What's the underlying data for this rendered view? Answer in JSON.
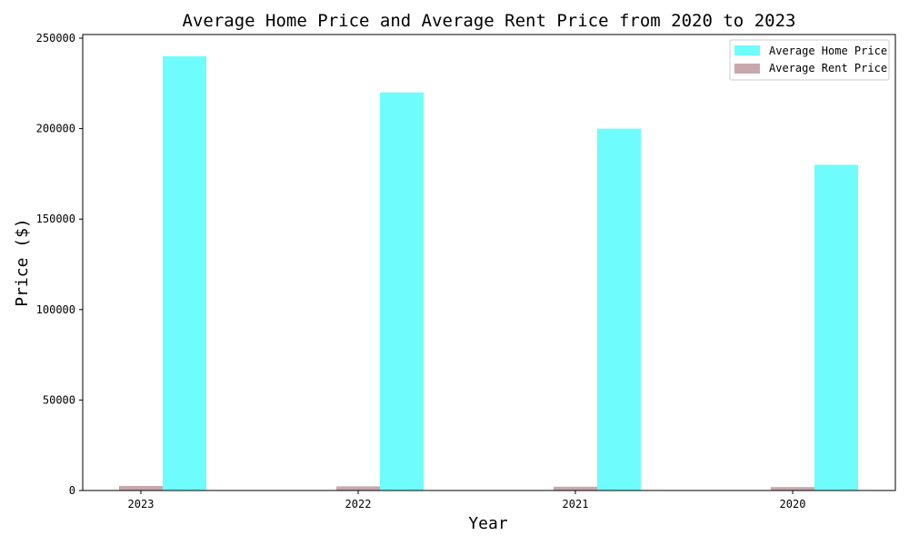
{
  "chart_data": {
    "type": "bar",
    "title": "Average Home Price and Average Rent Price from 2020 to 2023",
    "xlabel": "Year",
    "ylabel": "Price ($)",
    "categories": [
      "2023",
      "2022",
      "2021",
      "2020"
    ],
    "series": [
      {
        "name": "Average Home Price",
        "values": [
          240000,
          220000,
          200000,
          180000
        ],
        "color": "#6ffcfc"
      },
      {
        "name": "Average Rent Price",
        "values": [
          2500,
          2300,
          2100,
          1900
        ],
        "color": "#c8a8ac"
      }
    ],
    "ylim": [
      0,
      252000
    ],
    "yticks": [
      0,
      50000,
      100000,
      150000,
      200000,
      250000
    ],
    "grid": false,
    "legend": "top-right"
  }
}
